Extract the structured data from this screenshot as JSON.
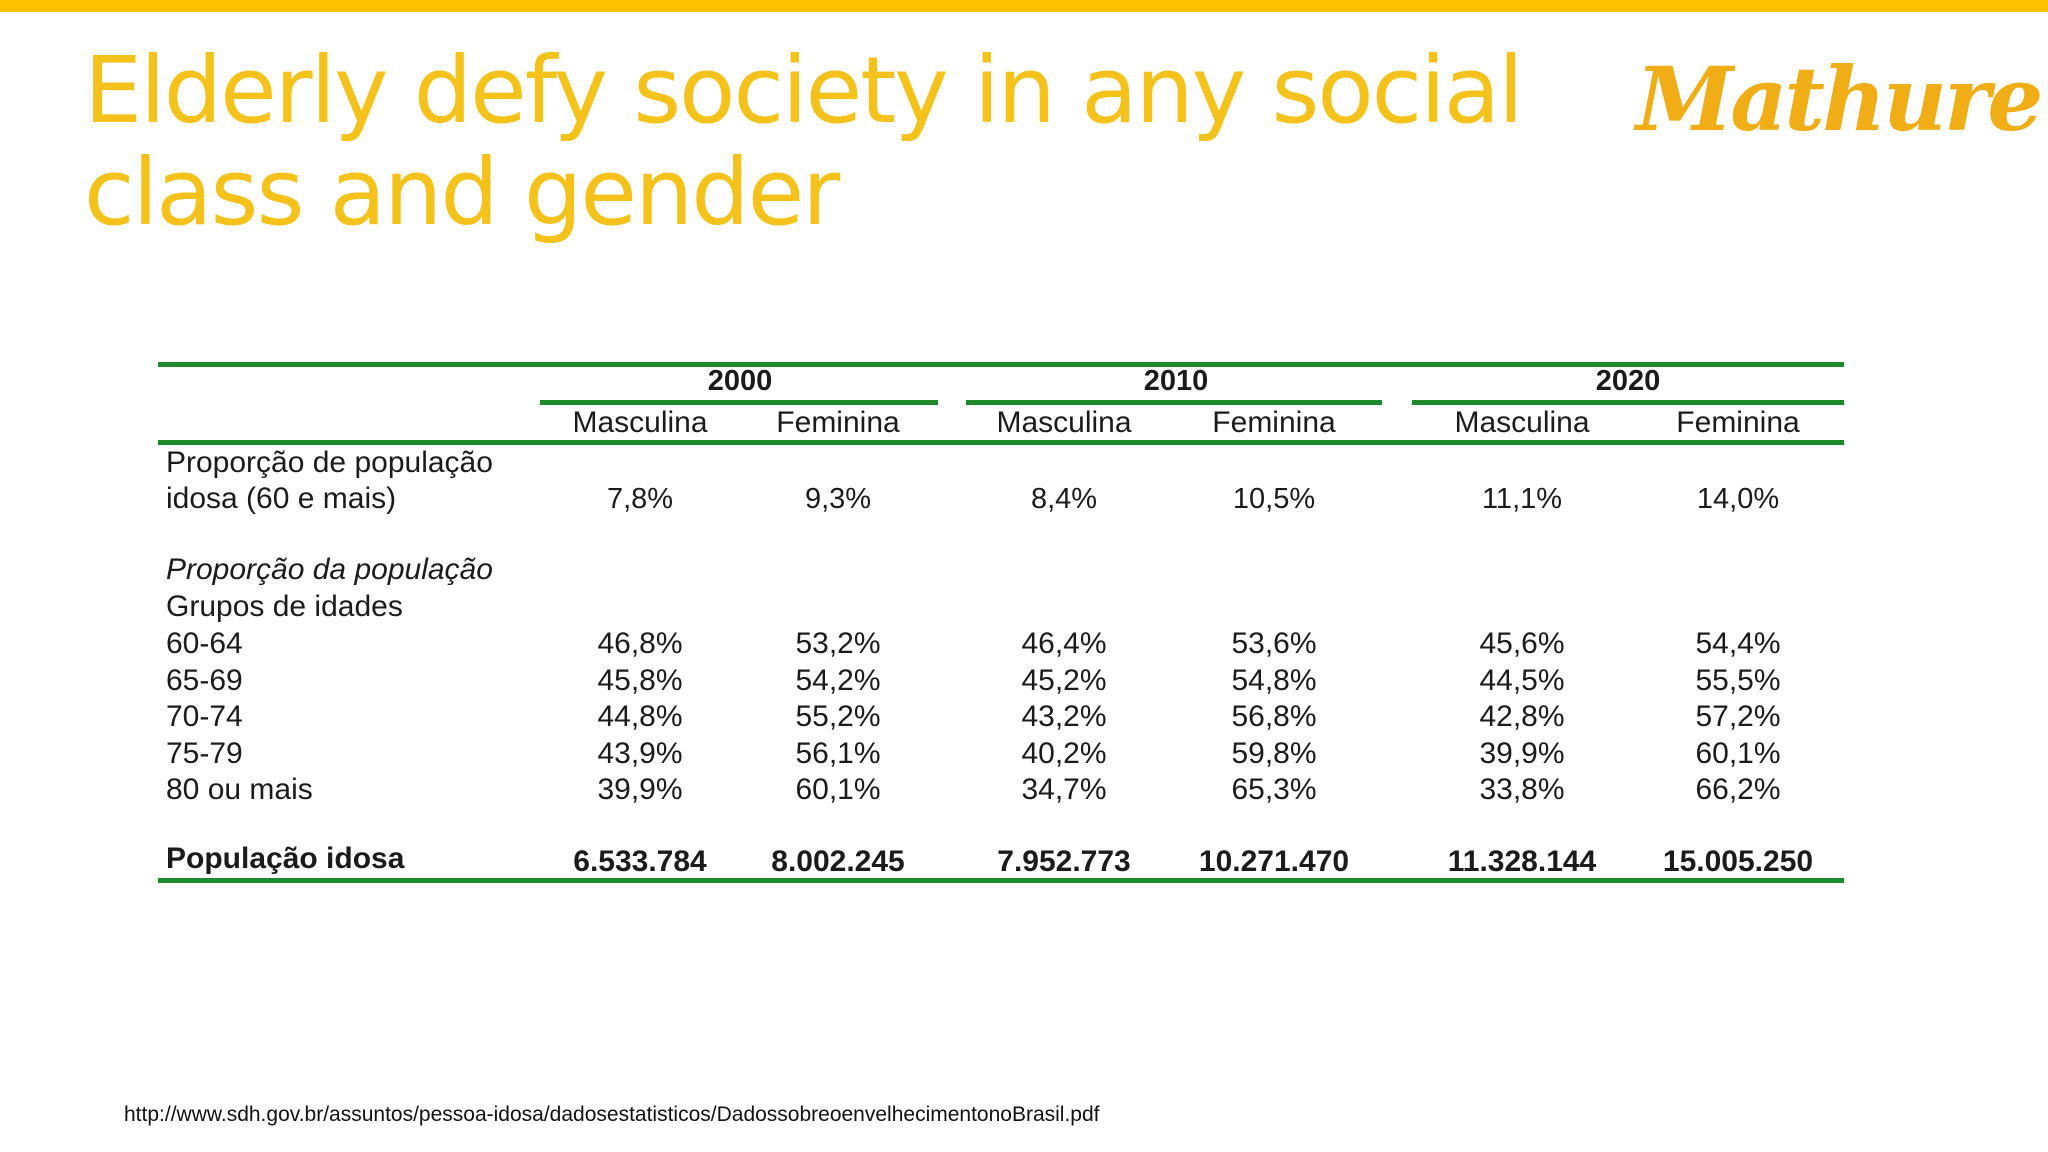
{
  "theme": {
    "accent": "#fcc200",
    "title_color": "#f4c21a",
    "logo_color": "#f0ad16",
    "rule_color": "#1e8a2e"
  },
  "slide": {
    "title_line1": "Elderly defy society in any social",
    "title_line2": "class and gender",
    "logo_text": "Mathure"
  },
  "table": {
    "years": [
      "2000",
      "2010",
      "2020"
    ],
    "sexes": [
      "Masculina",
      "Feminina",
      "Masculina",
      "Feminina",
      "Masculina",
      "Feminina"
    ],
    "proportion_label_line1": "Proporção de população",
    "proportion_label_line2": "idosa (60 e mais)",
    "proportion_values": [
      "7,8%",
      "9,3%",
      "8,4%",
      "10,5%",
      "11,1%",
      "14,0%"
    ],
    "section_label_italic": "Proporção da população",
    "section_label_groups": "Grupos de idades",
    "age_rows": [
      {
        "label": "60-64",
        "values": [
          "46,8%",
          "53,2%",
          "46,4%",
          "53,6%",
          "45,6%",
          "54,4%"
        ]
      },
      {
        "label": "65-69",
        "values": [
          "45,8%",
          "54,2%",
          "45,2%",
          "54,8%",
          "44,5%",
          "55,5%"
        ]
      },
      {
        "label": "70-74",
        "values": [
          "44,8%",
          "55,2%",
          "43,2%",
          "56,8%",
          "42,8%",
          "57,2%"
        ]
      },
      {
        "label": "75-79",
        "values": [
          "43,9%",
          "56,1%",
          "40,2%",
          "59,8%",
          "39,9%",
          "60,1%"
        ]
      },
      {
        "label": "80 ou mais",
        "values": [
          "39,9%",
          "60,1%",
          "34,7%",
          "65,3%",
          "33,8%",
          "66,2%"
        ]
      }
    ],
    "total_label": "População idosa",
    "total_values": [
      "6.533.784",
      "8.002.245",
      "7.952.773",
      "10.271.470",
      "11.328.144",
      "15.005.250"
    ]
  },
  "source": "http://www.sdh.gov.br/assuntos/pessoa-idosa/dadosestatisticos/DadossobreoenvelhecimentonoBrasil.pdf"
}
